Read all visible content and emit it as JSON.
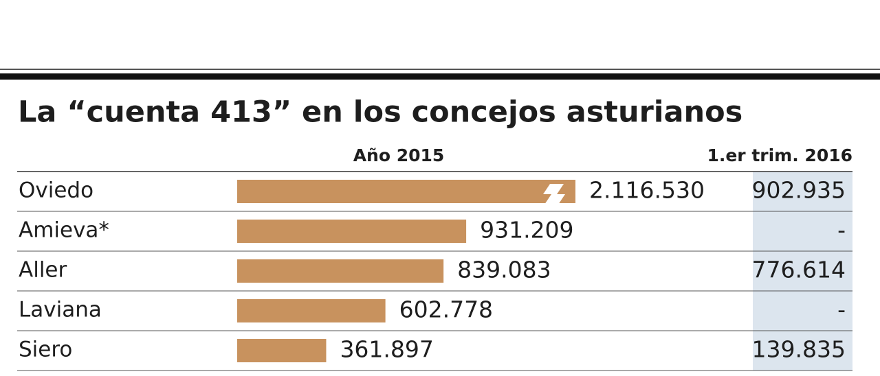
{
  "chart_data": {
    "type": "bar",
    "title": "La “cuenta 413” en los concejos asturianos",
    "bar_header": "Año 2015",
    "categories": [
      "Oviedo",
      "Amieva*",
      "Aller",
      "Laviana",
      "Siero"
    ],
    "values": [
      2116530,
      931209,
      839083,
      602778,
      361897
    ],
    "value_labels": [
      "2.116.530",
      "931.209",
      "839.083",
      "602.778",
      "361.897"
    ],
    "color": "#c8925e",
    "xlim": [
      0,
      2600000
    ],
    "second_column": {
      "header": "1.er trim. 2016",
      "cells": [
        "902.935",
        "-",
        "776.614",
        "-",
        "139.835"
      ]
    }
  }
}
